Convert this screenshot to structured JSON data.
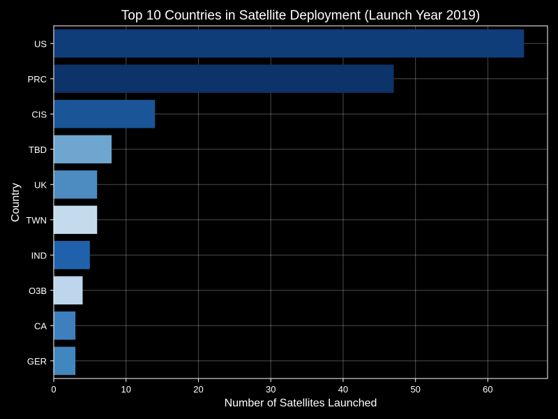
{
  "chart_data": {
    "type": "bar",
    "orientation": "horizontal",
    "title": "Top 10 Countries in Satellite Deployment (Launch Year 2019)",
    "xlabel": "Number of Satellites Launched",
    "ylabel": "Country",
    "categories": [
      "US",
      "PRC",
      "CIS",
      "TBD",
      "UK",
      "TWN",
      "IND",
      "O3B",
      "CA",
      "GER"
    ],
    "values": [
      65,
      47,
      14,
      8,
      6,
      6,
      5,
      4,
      3,
      3
    ],
    "bar_colors": [
      "#0f3d7a",
      "#0c336a",
      "#1a5597",
      "#6fa6cf",
      "#4c8cc0",
      "#c4dbee",
      "#1f62ab",
      "#bdd6ec",
      "#3e80bd",
      "#4286c0"
    ],
    "xlim": [
      0,
      68.25
    ],
    "xticks": [
      0,
      10,
      20,
      30,
      40,
      50,
      60
    ],
    "grid": true,
    "background": "#000000",
    "text_color": "#ffffff"
  }
}
